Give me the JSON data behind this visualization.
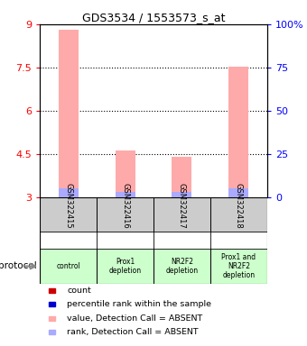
{
  "title": "GDS3534 / 1553573_s_at",
  "samples": [
    "GSM322415",
    "GSM322416",
    "GSM322417",
    "GSM322418"
  ],
  "pink_bar_values": [
    8.82,
    4.62,
    4.42,
    7.52
  ],
  "blue_mark_values": [
    3.32,
    3.2,
    3.18,
    3.3
  ],
  "y_min": 3,
  "y_max": 9,
  "y_ticks": [
    3,
    4.5,
    6,
    7.5,
    9
  ],
  "y_tick_labels": [
    "3",
    "4.5",
    "6",
    "7.5",
    "9"
  ],
  "y_right_ticks": [
    3,
    4.5,
    6,
    7.5,
    9
  ],
  "y_right_labels": [
    "0",
    "25",
    "50",
    "75",
    "100%"
  ],
  "protocol_labels": [
    "control",
    "Prox1\ndepletion",
    "NR2F2\ndepletion",
    "Prox1 and\nNR2F2\ndepletion"
  ],
  "protocol_colors": [
    "#ccffcc",
    "#ccffcc",
    "#ccffcc",
    "#ccffcc"
  ],
  "sample_bg_color": "#cccccc",
  "pink_bar_color": "#ffaaaa",
  "blue_mark_color": "#aaaaff",
  "legend_items": [
    {
      "color": "#cc0000",
      "label": "count"
    },
    {
      "color": "#0000cc",
      "label": "percentile rank within the sample"
    },
    {
      "color": "#ffaaaa",
      "label": "value, Detection Call = ABSENT"
    },
    {
      "color": "#aaaaff",
      "label": "rank, Detection Call = ABSENT"
    }
  ],
  "protocol_text": "protocol",
  "bar_width": 0.35,
  "figwidth": 3.4,
  "figheight": 3.84,
  "dpi": 100
}
